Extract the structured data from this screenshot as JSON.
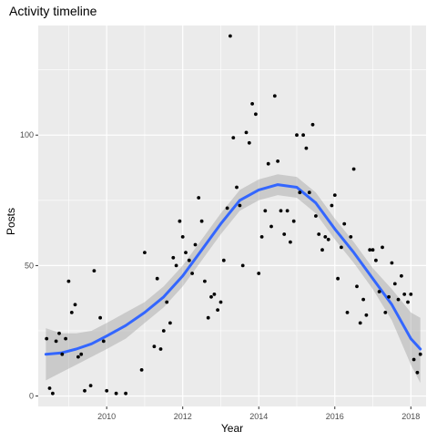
{
  "chart_data": {
    "type": "scatter",
    "title": "Activity timeline",
    "xlabel": "Year",
    "ylabel": "Posts",
    "xlim": [
      2008.2,
      2018.4
    ],
    "ylim": [
      -4,
      142
    ],
    "xticks": [
      2010,
      2012,
      2014,
      2016,
      2018
    ],
    "yticks": [
      0,
      50,
      100
    ],
    "grid": true,
    "colors": {
      "panel": "#EBEBEB",
      "grid": "#FFFFFF",
      "point": "#000000",
      "smooth": "#3366FF",
      "band": "#999999"
    },
    "points": [
      {
        "x": 2008.42,
        "y": 22
      },
      {
        "x": 2008.5,
        "y": 3
      },
      {
        "x": 2008.58,
        "y": 1
      },
      {
        "x": 2008.67,
        "y": 21
      },
      {
        "x": 2008.75,
        "y": 24
      },
      {
        "x": 2008.83,
        "y": 16
      },
      {
        "x": 2008.92,
        "y": 22
      },
      {
        "x": 2009.0,
        "y": 44
      },
      {
        "x": 2009.08,
        "y": 32
      },
      {
        "x": 2009.17,
        "y": 35
      },
      {
        "x": 2009.25,
        "y": 15
      },
      {
        "x": 2009.33,
        "y": 16
      },
      {
        "x": 2009.42,
        "y": 2
      },
      {
        "x": 2009.58,
        "y": 4
      },
      {
        "x": 2009.67,
        "y": 48
      },
      {
        "x": 2009.83,
        "y": 30
      },
      {
        "x": 2009.92,
        "y": 21
      },
      {
        "x": 2010.0,
        "y": 2
      },
      {
        "x": 2010.25,
        "y": 1
      },
      {
        "x": 2010.5,
        "y": 1
      },
      {
        "x": 2010.92,
        "y": 10
      },
      {
        "x": 2011.0,
        "y": 55
      },
      {
        "x": 2011.25,
        "y": 19
      },
      {
        "x": 2011.33,
        "y": 45
      },
      {
        "x": 2011.42,
        "y": 18
      },
      {
        "x": 2011.5,
        "y": 25
      },
      {
        "x": 2011.58,
        "y": 36
      },
      {
        "x": 2011.67,
        "y": 28
      },
      {
        "x": 2011.75,
        "y": 53
      },
      {
        "x": 2011.83,
        "y": 50
      },
      {
        "x": 2011.92,
        "y": 67
      },
      {
        "x": 2012.0,
        "y": 61
      },
      {
        "x": 2012.08,
        "y": 55
      },
      {
        "x": 2012.17,
        "y": 52
      },
      {
        "x": 2012.25,
        "y": 47
      },
      {
        "x": 2012.33,
        "y": 58
      },
      {
        "x": 2012.42,
        "y": 76
      },
      {
        "x": 2012.5,
        "y": 67
      },
      {
        "x": 2012.58,
        "y": 44
      },
      {
        "x": 2012.67,
        "y": 30
      },
      {
        "x": 2012.75,
        "y": 38
      },
      {
        "x": 2012.83,
        "y": 39
      },
      {
        "x": 2012.92,
        "y": 33
      },
      {
        "x": 2013.0,
        "y": 36
      },
      {
        "x": 2013.08,
        "y": 52
      },
      {
        "x": 2013.17,
        "y": 72
      },
      {
        "x": 2013.25,
        "y": 138
      },
      {
        "x": 2013.33,
        "y": 99
      },
      {
        "x": 2013.42,
        "y": 80
      },
      {
        "x": 2013.5,
        "y": 73
      },
      {
        "x": 2013.58,
        "y": 50
      },
      {
        "x": 2013.67,
        "y": 101
      },
      {
        "x": 2013.75,
        "y": 97
      },
      {
        "x": 2013.83,
        "y": 112
      },
      {
        "x": 2013.92,
        "y": 108
      },
      {
        "x": 2014.0,
        "y": 47
      },
      {
        "x": 2014.08,
        "y": 61
      },
      {
        "x": 2014.17,
        "y": 71
      },
      {
        "x": 2014.25,
        "y": 89
      },
      {
        "x": 2014.33,
        "y": 65
      },
      {
        "x": 2014.42,
        "y": 115
      },
      {
        "x": 2014.5,
        "y": 90
      },
      {
        "x": 2014.58,
        "y": 71
      },
      {
        "x": 2014.67,
        "y": 62
      },
      {
        "x": 2014.75,
        "y": 71
      },
      {
        "x": 2014.83,
        "y": 59
      },
      {
        "x": 2014.92,
        "y": 67
      },
      {
        "x": 2015.0,
        "y": 100
      },
      {
        "x": 2015.08,
        "y": 78
      },
      {
        "x": 2015.17,
        "y": 100
      },
      {
        "x": 2015.25,
        "y": 95
      },
      {
        "x": 2015.33,
        "y": 78
      },
      {
        "x": 2015.42,
        "y": 104
      },
      {
        "x": 2015.5,
        "y": 69
      },
      {
        "x": 2015.58,
        "y": 62
      },
      {
        "x": 2015.67,
        "y": 56
      },
      {
        "x": 2015.75,
        "y": 61
      },
      {
        "x": 2015.83,
        "y": 60
      },
      {
        "x": 2015.92,
        "y": 73
      },
      {
        "x": 2016.0,
        "y": 77
      },
      {
        "x": 2016.08,
        "y": 45
      },
      {
        "x": 2016.17,
        "y": 57
      },
      {
        "x": 2016.25,
        "y": 66
      },
      {
        "x": 2016.33,
        "y": 32
      },
      {
        "x": 2016.42,
        "y": 61
      },
      {
        "x": 2016.5,
        "y": 87
      },
      {
        "x": 2016.58,
        "y": 42
      },
      {
        "x": 2016.67,
        "y": 28
      },
      {
        "x": 2016.75,
        "y": 37
      },
      {
        "x": 2016.83,
        "y": 31
      },
      {
        "x": 2016.92,
        "y": 56
      },
      {
        "x": 2017.0,
        "y": 56
      },
      {
        "x": 2017.08,
        "y": 52
      },
      {
        "x": 2017.17,
        "y": 40
      },
      {
        "x": 2017.25,
        "y": 57
      },
      {
        "x": 2017.33,
        "y": 32
      },
      {
        "x": 2017.42,
        "y": 38
      },
      {
        "x": 2017.5,
        "y": 51
      },
      {
        "x": 2017.58,
        "y": 43
      },
      {
        "x": 2017.67,
        "y": 37
      },
      {
        "x": 2017.75,
        "y": 46
      },
      {
        "x": 2017.83,
        "y": 39
      },
      {
        "x": 2017.92,
        "y": 36
      },
      {
        "x": 2018.0,
        "y": 39
      },
      {
        "x": 2018.08,
        "y": 14
      },
      {
        "x": 2018.17,
        "y": 9
      },
      {
        "x": 2018.25,
        "y": 16
      }
    ],
    "smooth": {
      "x": [
        2008.4,
        2008.8,
        2009.2,
        2009.6,
        2010.0,
        2010.5,
        2011.0,
        2011.5,
        2012.0,
        2012.5,
        2013.0,
        2013.5,
        2014.0,
        2014.5,
        2015.0,
        2015.5,
        2016.0,
        2016.5,
        2017.0,
        2017.5,
        2018.0,
        2018.25
      ],
      "y": [
        16,
        16.5,
        18,
        20,
        23,
        27,
        32,
        38,
        46,
        56,
        66,
        75,
        79,
        81,
        80,
        74,
        64,
        55,
        45,
        35,
        22,
        18
      ],
      "lower": [
        6,
        9,
        12,
        15,
        18,
        22,
        28,
        34,
        42,
        52,
        62,
        71,
        75,
        77,
        76,
        70,
        60,
        51,
        41,
        29,
        12,
        5
      ],
      "upper": [
        26,
        24,
        24,
        25,
        28,
        32,
        36,
        42,
        50,
        60,
        70,
        79,
        83,
        85,
        84,
        78,
        68,
        59,
        49,
        41,
        32,
        30
      ]
    }
  }
}
